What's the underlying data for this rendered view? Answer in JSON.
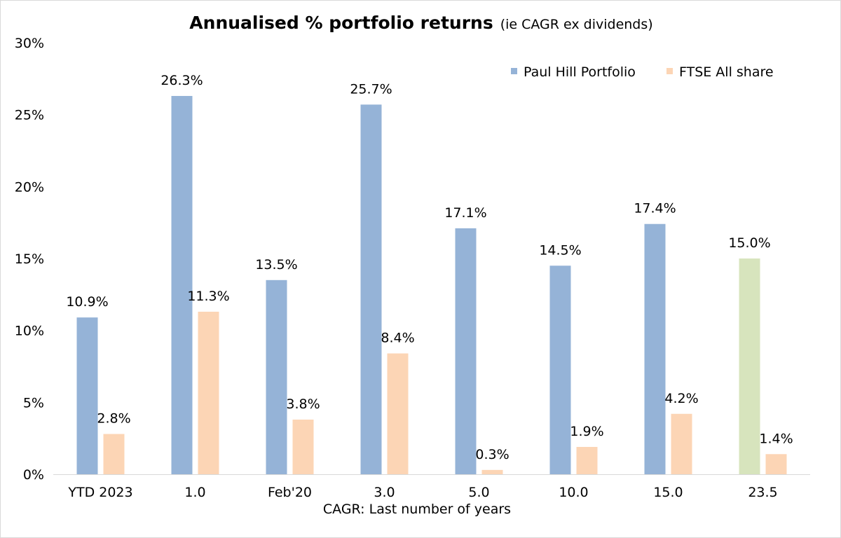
{
  "chart_data": {
    "type": "bar",
    "title": "Annualised % portfolio returns",
    "subtitle": "(ie CAGR ex dividends)",
    "xlabel": "CAGR: Last number of years",
    "ylabel": "",
    "ylim": [
      0,
      30
    ],
    "yticks": [
      "0%",
      "5%",
      "10%",
      "15%",
      "20%",
      "25%",
      "30%"
    ],
    "ytick_values": [
      0,
      5,
      10,
      15,
      20,
      25,
      30
    ],
    "grid": false,
    "legend_position": "top-right",
    "categories": [
      "YTD 2023",
      "1.0",
      "Feb'20",
      "3.0",
      "5.0",
      "10.0",
      "15.0",
      "23.5"
    ],
    "series": [
      {
        "name": "Paul Hill Portfolio",
        "color": "#95b3d7",
        "highlight_color": "#d7e4bd",
        "highlight_index": 7,
        "values": [
          10.9,
          26.3,
          13.5,
          25.7,
          17.1,
          14.5,
          17.4,
          15.0
        ],
        "labels": [
          "10.9%",
          "26.3%",
          "13.5%",
          "25.7%",
          "17.1%",
          "14.5%",
          "17.4%",
          "15.0%"
        ]
      },
      {
        "name": "FTSE All share",
        "color": "#fcd5b5",
        "values": [
          2.8,
          11.3,
          3.8,
          8.4,
          0.3,
          1.9,
          4.2,
          1.4
        ],
        "labels": [
          "2.8%",
          "11.3%",
          "3.8%",
          "8.4%",
          "0.3%",
          "1.9%",
          "4.2%",
          "1.4%"
        ]
      }
    ]
  }
}
